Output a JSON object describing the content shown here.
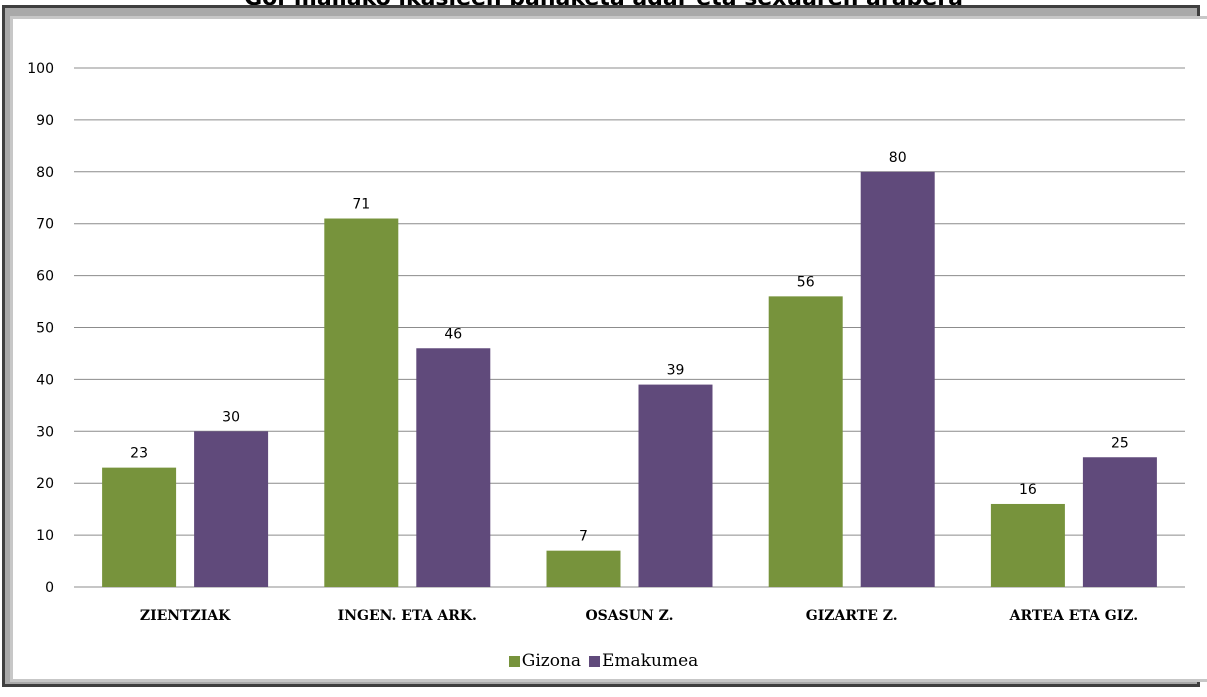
{
  "title": "Goi-mailako ikasleen banaketa adar eta sexuaren arabera",
  "chart_data": {
    "type": "bar",
    "title": "",
    "xlabel": "",
    "ylabel": "",
    "ylim": [
      0,
      100
    ],
    "yticks": [
      0,
      10,
      20,
      30,
      40,
      50,
      60,
      70,
      80,
      90,
      100
    ],
    "grid": true,
    "legend_position": "bottom",
    "categories": [
      "ZIENTZIAK",
      "INGEN. ETA ARK.",
      "OSASUN Z.",
      "GIZARTE Z.",
      "ARTEA ETA GIZ."
    ],
    "series": [
      {
        "name": "Gizona",
        "color": "#77933c",
        "values": [
          23,
          71,
          7,
          56,
          16
        ]
      },
      {
        "name": "Emakumea",
        "color": "#604a7b",
        "values": [
          30,
          46,
          39,
          80,
          25
        ]
      }
    ]
  }
}
